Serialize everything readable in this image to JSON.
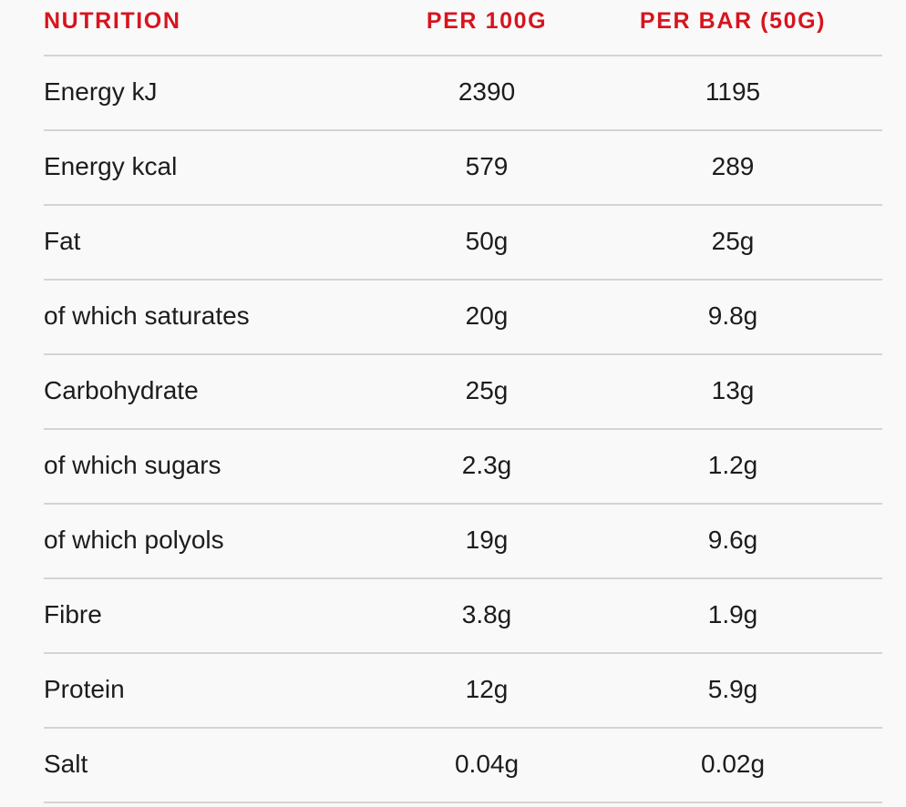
{
  "table": {
    "headers": {
      "nutrient": "NUTRITION",
      "per_100g": "PER 100G",
      "per_bar": "PER BAR (50G)"
    },
    "rows": [
      {
        "nutrient": "Energy kJ",
        "per_100g": "2390",
        "per_bar": "1195"
      },
      {
        "nutrient": "Energy kcal",
        "per_100g": "579",
        "per_bar": "289"
      },
      {
        "nutrient": "Fat",
        "per_100g": "50g",
        "per_bar": "25g"
      },
      {
        "nutrient": "of which saturates",
        "per_100g": "20g",
        "per_bar": "9.8g"
      },
      {
        "nutrient": "Carbohydrate",
        "per_100g": "25g",
        "per_bar": "13g"
      },
      {
        "nutrient": "of which sugars",
        "per_100g": "2.3g",
        "per_bar": "1.2g"
      },
      {
        "nutrient": "of which polyols",
        "per_100g": "19g",
        "per_bar": "9.6g"
      },
      {
        "nutrient": "Fibre",
        "per_100g": "3.8g",
        "per_bar": "1.9g"
      },
      {
        "nutrient": "Protein",
        "per_100g": "12g",
        "per_bar": "5.9g"
      },
      {
        "nutrient": "Salt",
        "per_100g": "0.04g",
        "per_bar": "0.02g"
      }
    ]
  },
  "colors": {
    "header_accent": "#d7141e",
    "divider": "#d4d4d4",
    "background": "#f9f9f9",
    "text": "#1c1c1c"
  }
}
